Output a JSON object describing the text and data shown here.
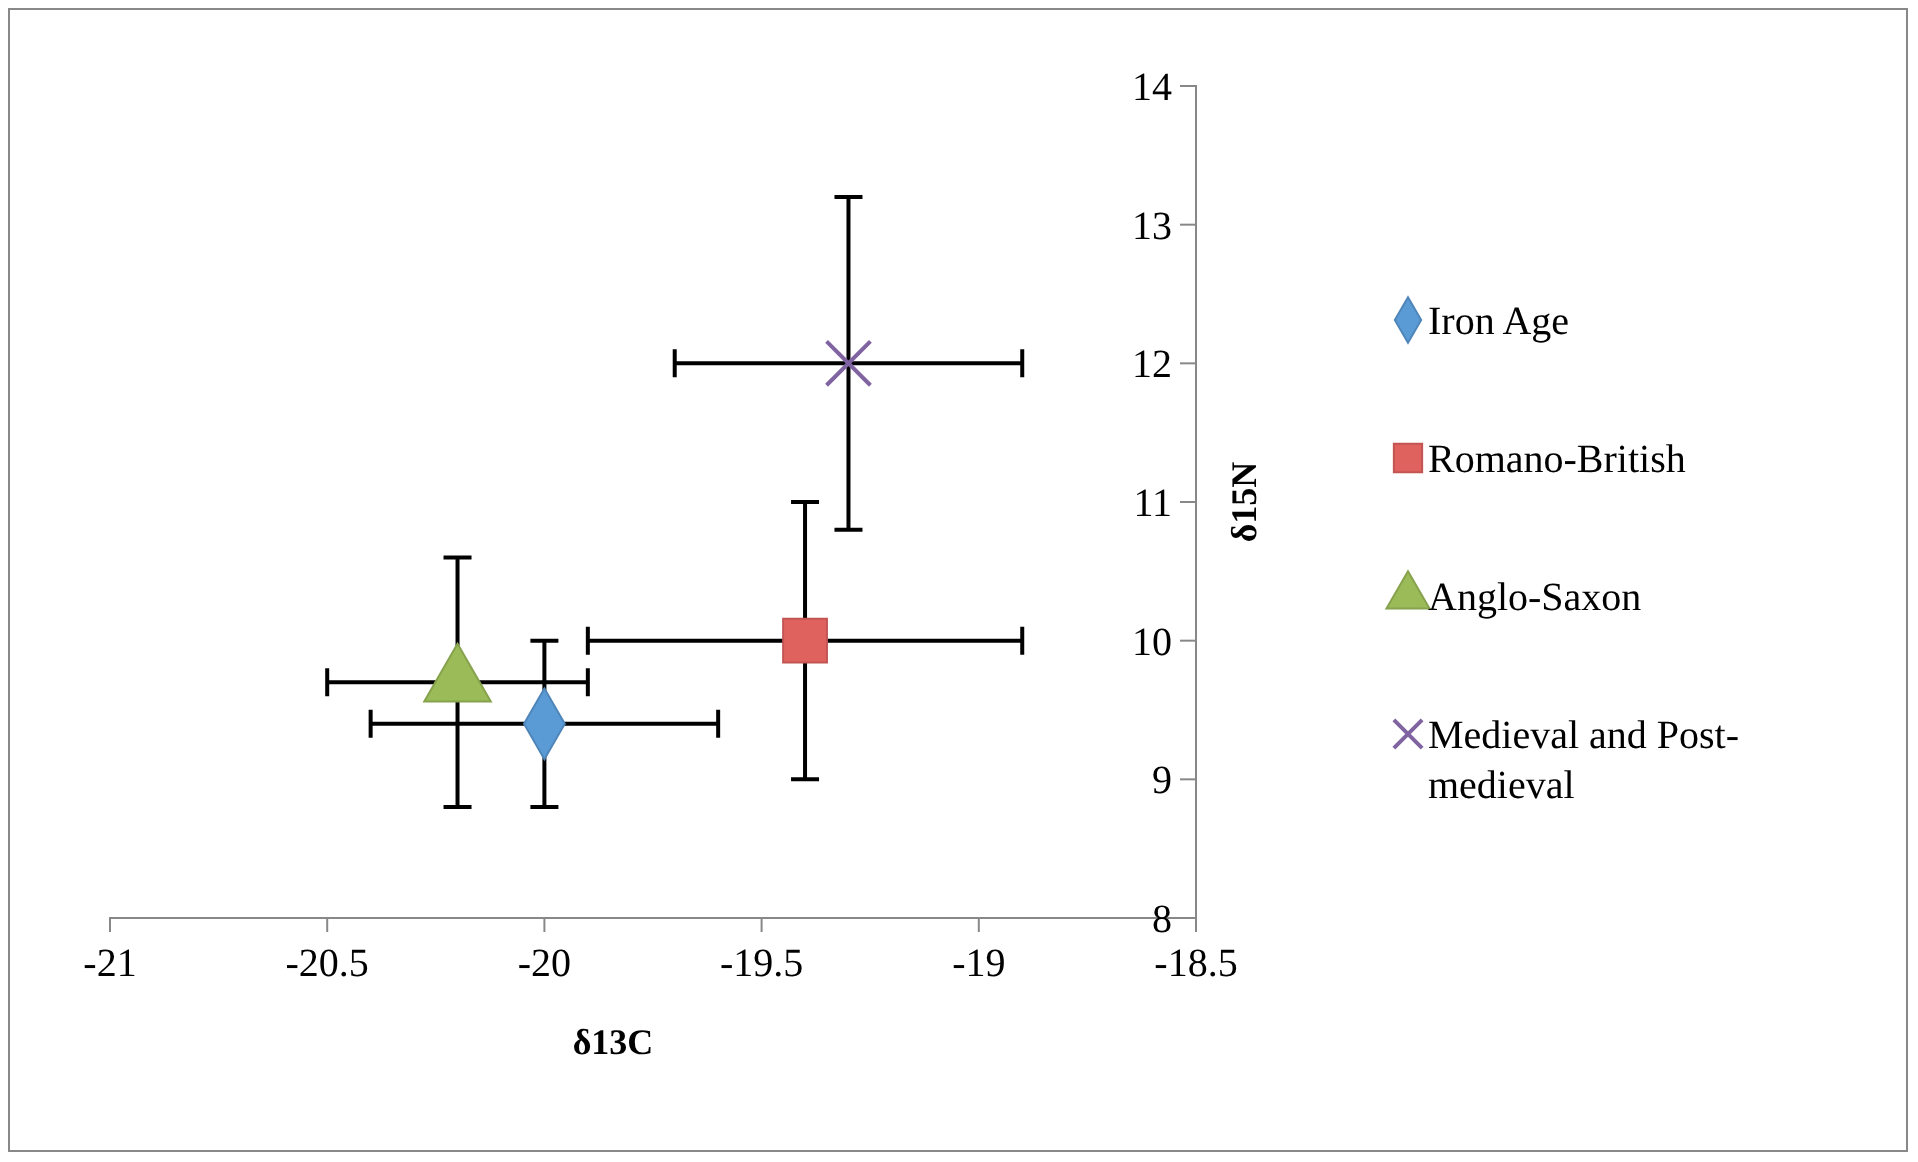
{
  "chart_data": {
    "type": "scatter",
    "xlabel": "δ13C",
    "ylabel": "δ15N",
    "xlim": [
      -21,
      -18.5
    ],
    "xticks": [
      -21,
      -20.5,
      -20,
      -19.5,
      -19,
      -18.5
    ],
    "ylim": [
      8,
      14
    ],
    "yticks": [
      8,
      9,
      10,
      11,
      12,
      13,
      14
    ],
    "grid": false,
    "legend": "right",
    "series": [
      {
        "name": "Iron Age",
        "color": "#5b9bd5",
        "marker": "diamond",
        "x": [
          -20
        ],
        "values": [
          9.4
        ],
        "errors": [
          0.6
        ],
        "xerrors": [
          0.4
        ]
      },
      {
        "name": "Romano-British",
        "color": "#e0625f",
        "marker": "square",
        "x": [
          -19.4
        ],
        "values": [
          10
        ],
        "errors": [
          1
        ],
        "xerrors": [
          0.5
        ]
      },
      {
        "name": "Anglo-Saxon",
        "color": "#9bbb59",
        "marker": "triangle",
        "x": [
          -20.2
        ],
        "values": [
          9.7
        ],
        "errors": [
          0.9
        ],
        "xerrors": [
          0.3
        ]
      },
      {
        "name": "Medieval and Post-medieval",
        "color": "#8064a2",
        "marker": "cross",
        "x": [
          -19.3
        ],
        "values": [
          12
        ],
        "errors": [
          1.2
        ],
        "xerrors": [
          0.4
        ]
      }
    ]
  }
}
